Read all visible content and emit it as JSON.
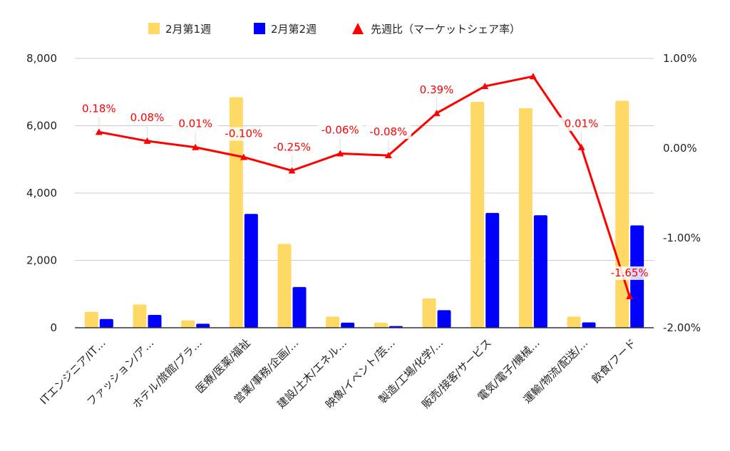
{
  "chart_data": {
    "type": "bar",
    "categories": [
      "ITエンジニア/IT…",
      "ファッション/ア…",
      "ホテル/旅館/ブラ…",
      "医療/医薬/福祉",
      "営業/事務/企画/…",
      "建設/土木/エネル…",
      "映像/イベント/芸…",
      "製造/工場/化学/…",
      "販売/接客/サービス",
      "電気/電子/機械…",
      "運輸/物流/配送/…",
      "飲食/フード"
    ],
    "series": [
      {
        "name": "2月第1週",
        "type": "bar",
        "axis": "left",
        "color": "#ffd966",
        "values": [
          470,
          690,
          220,
          6850,
          2490,
          330,
          150,
          870,
          6710,
          6520,
          330,
          6740
        ]
      },
      {
        "name": "2月第2週",
        "type": "bar",
        "axis": "left",
        "color": "#0000ff",
        "values": [
          260,
          380,
          120,
          3380,
          1210,
          150,
          50,
          520,
          3410,
          3340,
          160,
          3040
        ]
      },
      {
        "name": "先週比（マーケットシェア率）",
        "type": "line",
        "axis": "right",
        "color": "#ff0000",
        "marker": "triangle",
        "values": [
          0.18,
          0.08,
          0.01,
          -0.1,
          -0.25,
          -0.06,
          -0.08,
          0.39,
          0.69,
          0.8,
          0.01,
          -1.65
        ],
        "labels": [
          "0.18%",
          "0.08%",
          "0.01%",
          "-0.10%",
          "-0.25%",
          "-0.06%",
          "-0.08%",
          "0.39%",
          "",
          "",
          "0.01%",
          "-1.65%"
        ]
      }
    ],
    "left_axis": {
      "ylim": [
        0,
        8000
      ],
      "ticks": [
        0,
        2000,
        4000,
        6000,
        8000
      ],
      "tick_labels": [
        "0",
        "2,000",
        "4,000",
        "6,000",
        "8,000"
      ]
    },
    "right_axis": {
      "ylim": [
        -2,
        1
      ],
      "ticks": [
        -2,
        -1,
        0,
        1
      ],
      "tick_labels": [
        "-2.00%",
        "-1.00%",
        "0.00%",
        "1.00%"
      ]
    },
    "legend": {
      "position": "top",
      "labels": [
        "2月第1週",
        "2月第2週",
        "先週比（マーケットシェア率）"
      ]
    },
    "grid": true
  }
}
